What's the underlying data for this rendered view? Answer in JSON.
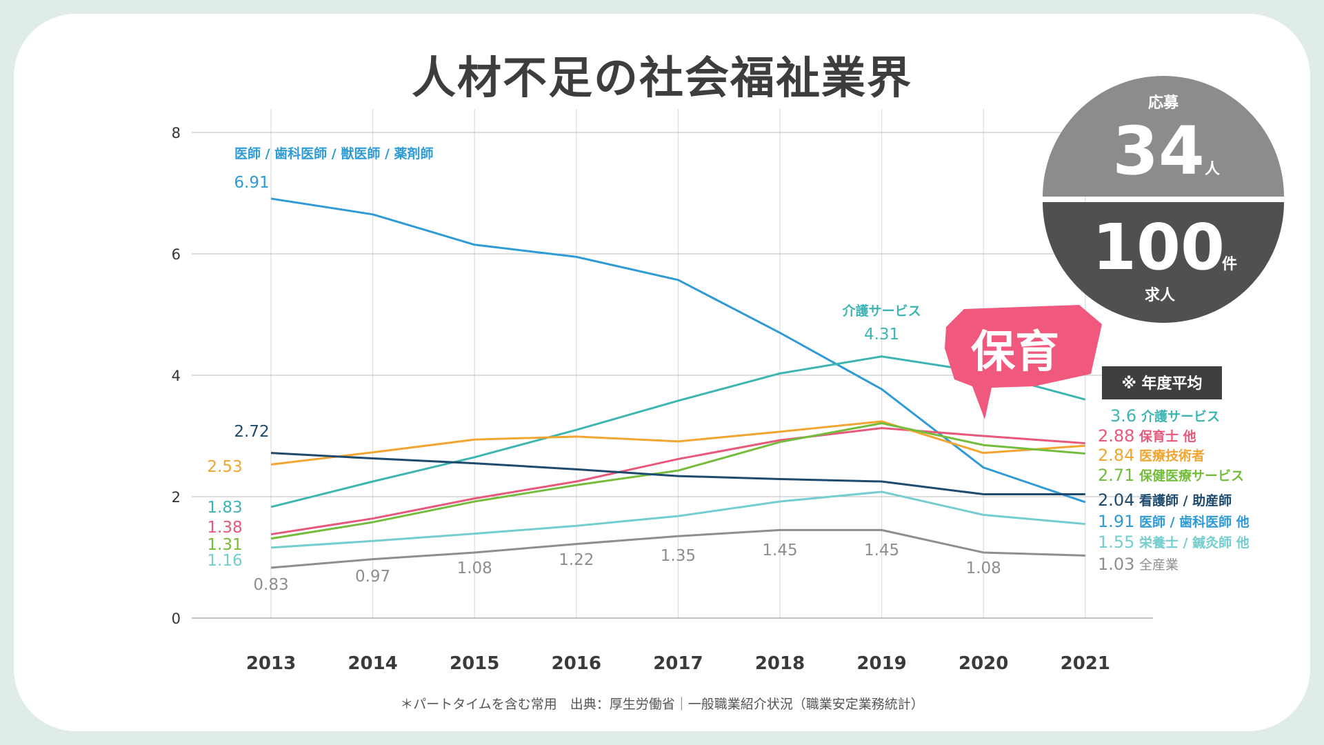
{
  "title": "人材不足の社会福祉業界",
  "footnote": "＊パートタイムを含む常用　出典：厚生労働省｜一般職業紹介状況（職業安定業務統計）",
  "badge": {
    "top_label": "応募",
    "top_number": "34",
    "top_unit": "人",
    "bottom_number": "100",
    "bottom_unit": "件",
    "bottom_label": "求人",
    "top_color": "#8c8c8c",
    "bottom_color": "#505050"
  },
  "callout": {
    "text": "保育",
    "color": "#f0587e"
  },
  "note_box": {
    "text": "※ 年度平均",
    "color": "#3f3f3f"
  },
  "chart_data": {
    "type": "line",
    "title": "人材不足の社会福祉業界",
    "xlabel": "",
    "ylabel": "",
    "ylim": [
      0,
      8
    ],
    "y_ticks": [
      0,
      2,
      4,
      6,
      8
    ],
    "y_tick_labels": [
      "0",
      "2",
      "4",
      "6",
      "8"
    ],
    "grid": true,
    "categories": [
      "2013",
      "2014",
      "2015",
      "2016",
      "2017",
      "2018",
      "2019",
      "2020",
      "2021"
    ],
    "series": [
      {
        "key": "doctor",
        "name": "医師 / 歯科医師 / 獣医師 / 薬剤師",
        "legend_name": "医師 / 歯科医師 他",
        "color": "#2e9bd6",
        "values": [
          6.91,
          6.65,
          6.15,
          5.95,
          5.57,
          4.7,
          3.77,
          2.48,
          1.91
        ],
        "end_label": "1.91",
        "start_label": "6.91"
      },
      {
        "key": "care",
        "name": "介護サービス",
        "legend_name": "介護サービス",
        "color": "#3db5b3",
        "values": [
          1.83,
          2.25,
          2.65,
          3.1,
          3.58,
          4.03,
          4.31,
          4.05,
          3.6
        ],
        "end_label": "3.6",
        "start_label": "1.83",
        "peak_label": "4.31"
      },
      {
        "key": "childcare",
        "name": "保育士 他",
        "legend_name": "保育士 他",
        "color": "#e8587a",
        "values": [
          1.38,
          1.64,
          1.97,
          2.25,
          2.62,
          2.93,
          3.13,
          3.0,
          2.88
        ],
        "end_label": "2.88",
        "start_label": "1.38"
      },
      {
        "key": "medtech",
        "name": "医療技術者",
        "legend_name": "医療技術者",
        "color": "#f2a531",
        "values": [
          2.53,
          2.73,
          2.94,
          2.99,
          2.91,
          3.07,
          3.24,
          2.72,
          2.84
        ],
        "end_label": "2.84",
        "start_label": "2.53"
      },
      {
        "key": "healthcare",
        "name": "保健医療サービス",
        "legend_name": "保健医療サービス",
        "color": "#74bd3c",
        "values": [
          1.31,
          1.58,
          1.92,
          2.19,
          2.43,
          2.9,
          3.21,
          2.85,
          2.71
        ],
        "end_label": "2.71",
        "start_label": "1.31"
      },
      {
        "key": "nurse",
        "name": "看護師 / 助産師",
        "legend_name": "看護師 / 助産師",
        "color": "#1e4a6e",
        "values": [
          2.72,
          2.63,
          2.55,
          2.45,
          2.34,
          2.29,
          2.25,
          2.04,
          2.04
        ],
        "end_label": "2.04",
        "start_label": "2.72"
      },
      {
        "key": "nutrition",
        "name": "栄養士 / 鍼灸師 他",
        "legend_name": "栄養士 / 鍼灸師 他",
        "color": "#74cdcf",
        "values": [
          1.16,
          1.27,
          1.39,
          1.52,
          1.68,
          1.92,
          2.08,
          1.7,
          1.55
        ],
        "end_label": "1.55",
        "start_label": "1.16"
      },
      {
        "key": "all",
        "name": "全産業",
        "legend_name": "全産業",
        "color": "#8e8e8e",
        "values": [
          0.83,
          0.97,
          1.08,
          1.22,
          1.35,
          1.45,
          1.45,
          1.08,
          1.03
        ],
        "end_label": "1.03",
        "point_labels": [
          "0.83",
          "0.97",
          "1.08",
          "1.22",
          "1.35",
          "1.45",
          "1.45",
          "1.08"
        ]
      }
    ]
  }
}
